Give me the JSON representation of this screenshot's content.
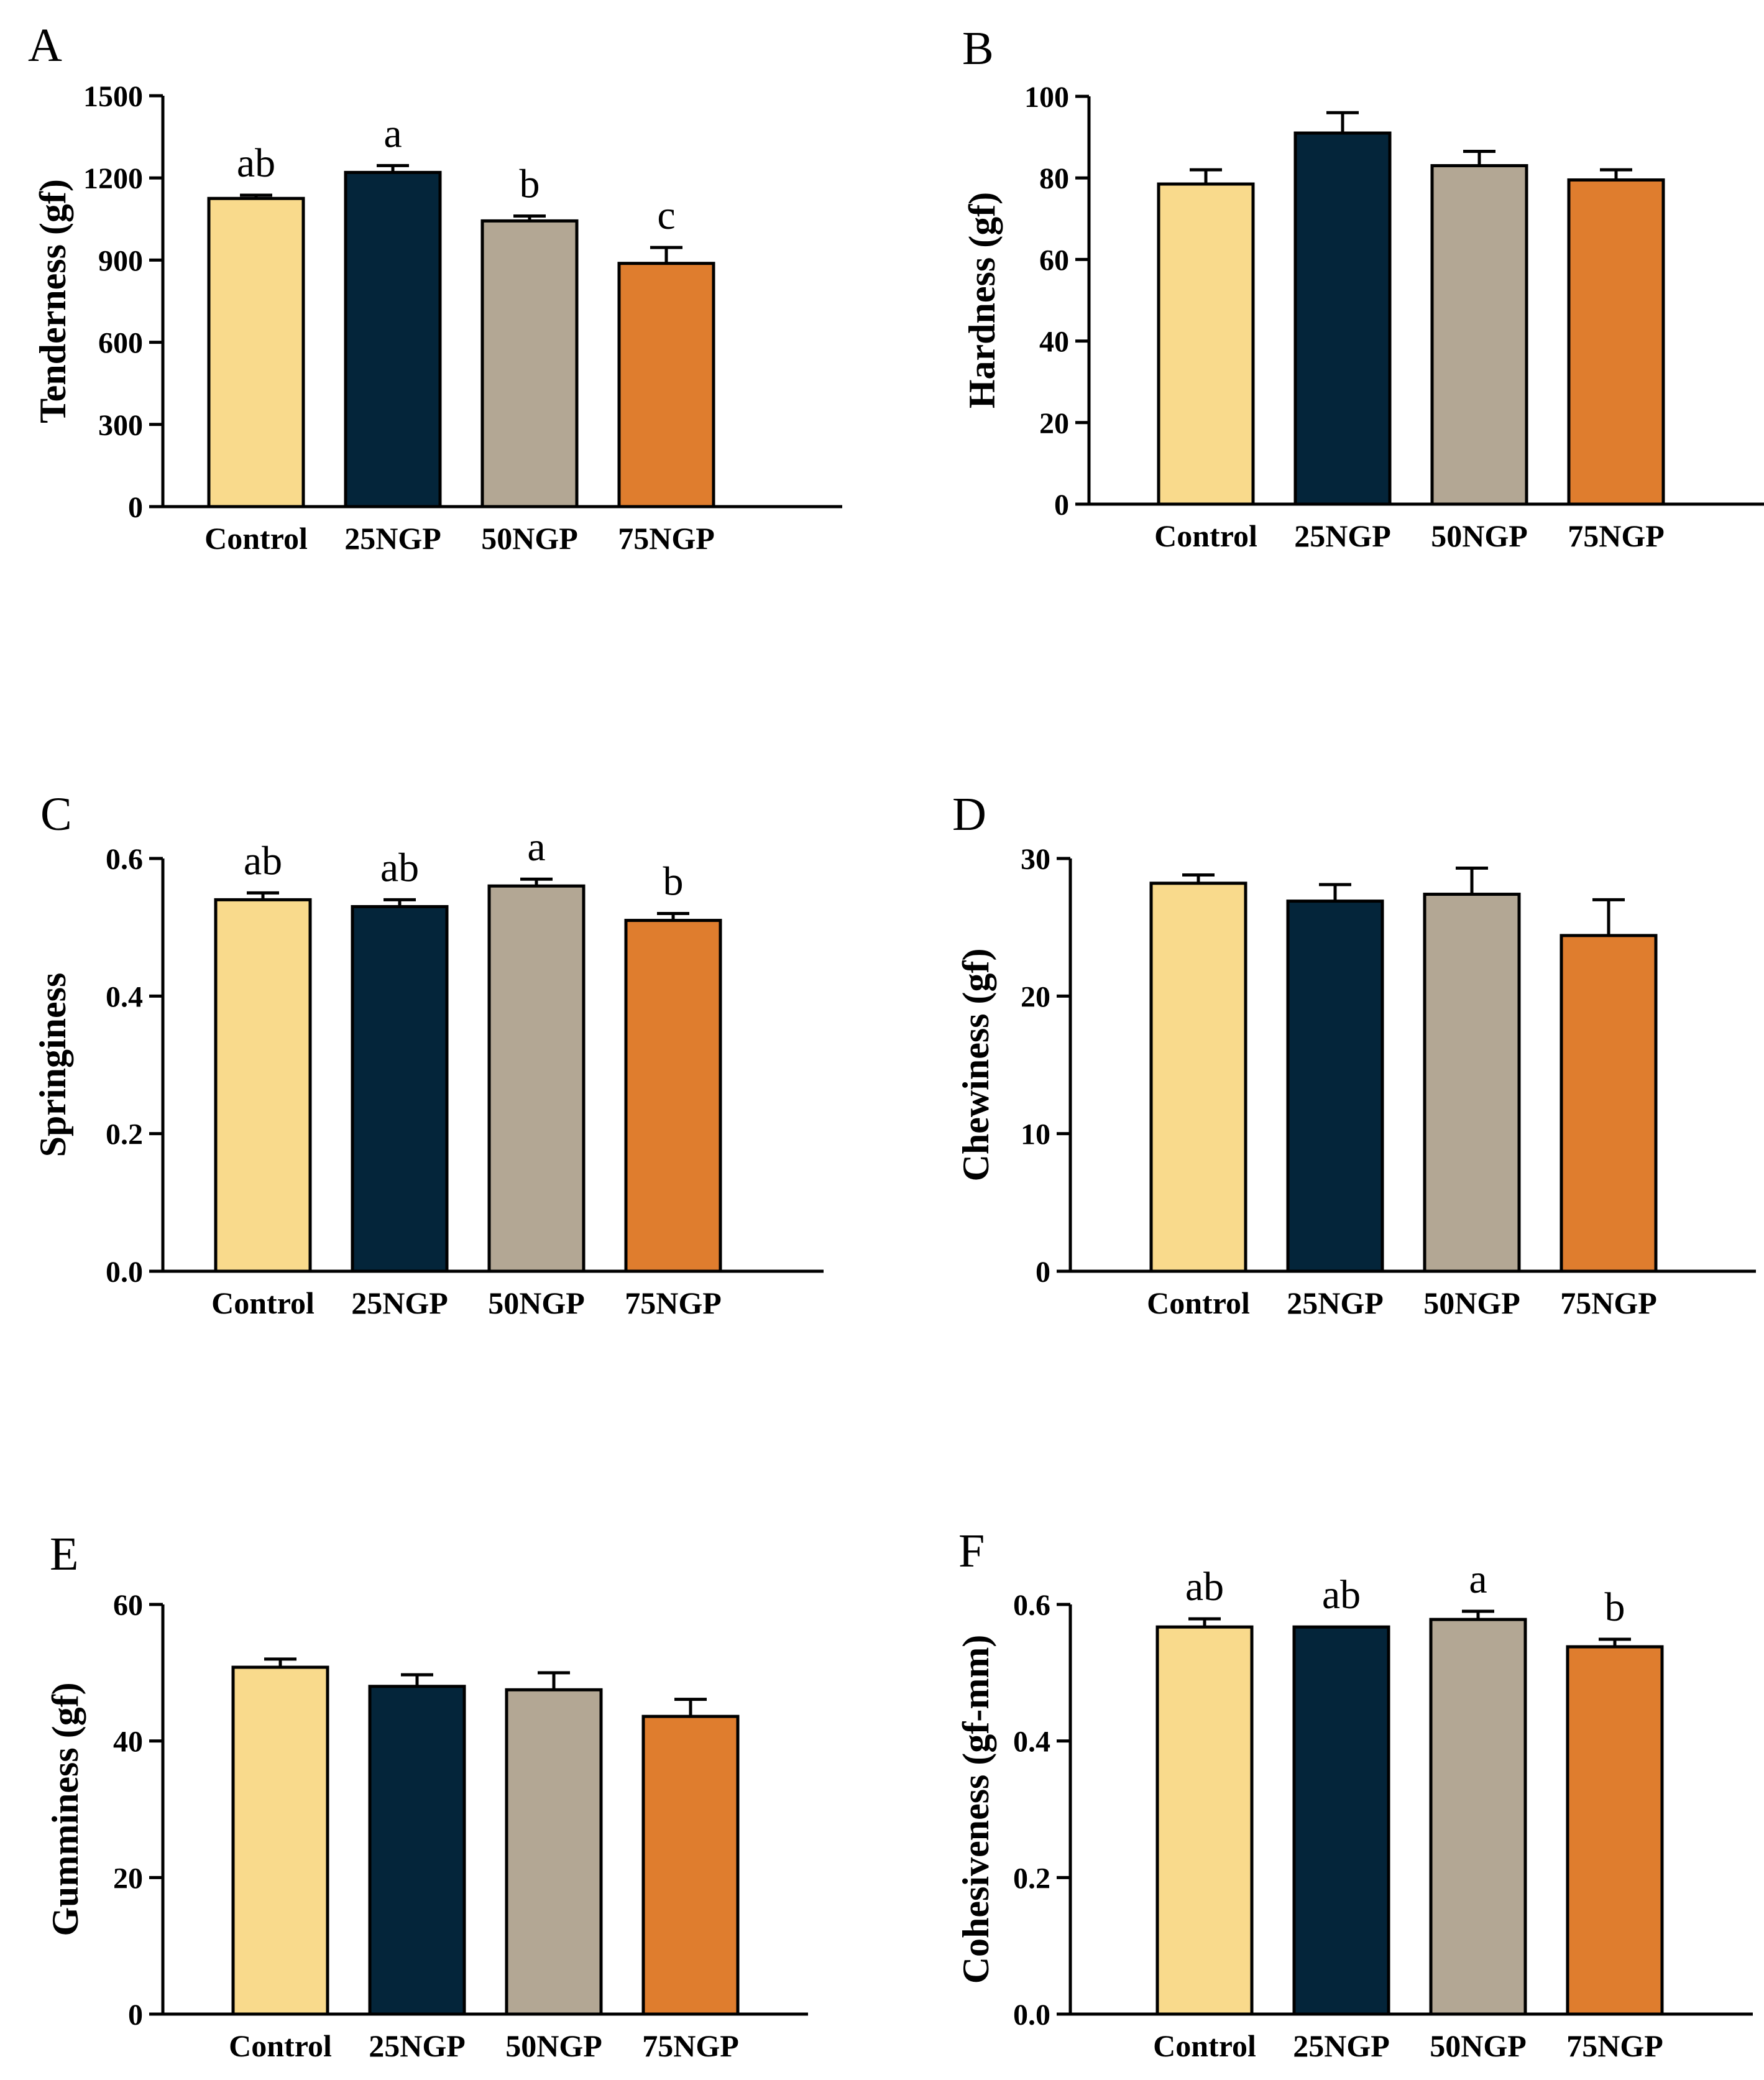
{
  "figure": {
    "categories": [
      "Control",
      "25NGP",
      "50NGP",
      "75NGP"
    ],
    "colors": {
      "bars": [
        "#f9da8c",
        "#04253a",
        "#b3a794",
        "#df7d2e"
      ],
      "axis": "#000000"
    }
  },
  "chart_data": [
    {
      "panel": "A",
      "type": "bar",
      "title": "",
      "xlabel": "",
      "ylabel": "Tenderness (gf)",
      "categories": [
        "Control",
        "25NGP",
        "50NGP",
        "75NGP"
      ],
      "values": [
        1125,
        1220,
        1043,
        888
      ],
      "errors": [
        12,
        25,
        18,
        58
      ],
      "significance": [
        "ab",
        "a",
        "b",
        "c"
      ],
      "ylim": [
        0,
        1500
      ],
      "yticks": [
        0,
        300,
        600,
        900,
        1200,
        1500
      ],
      "ytick_labels": [
        "0",
        "300",
        "600",
        "900",
        "1200",
        "1500"
      ],
      "grid": false
    },
    {
      "panel": "B",
      "type": "bar",
      "title": "",
      "xlabel": "",
      "ylabel": "Hardness (gf)",
      "categories": [
        "Control",
        "25NGP",
        "50NGP",
        "75NGP"
      ],
      "values": [
        78.5,
        91,
        83,
        79.5
      ],
      "errors": [
        3.5,
        5,
        3.5,
        2.5
      ],
      "significance": [],
      "ylim": [
        0,
        100
      ],
      "yticks": [
        0,
        20,
        40,
        60,
        80,
        100
      ],
      "ytick_labels": [
        "0",
        "20",
        "40",
        "60",
        "80",
        "100"
      ],
      "grid": false
    },
    {
      "panel": "C",
      "type": "bar",
      "title": "",
      "xlabel": "",
      "ylabel": "Springiness",
      "categories": [
        "Control",
        "25NGP",
        "50NGP",
        "75NGP"
      ],
      "values": [
        0.54,
        0.53,
        0.56,
        0.51
      ],
      "errors": [
        0.01,
        0.01,
        0.01,
        0.01
      ],
      "significance": [
        "ab",
        "ab",
        "a",
        "b"
      ],
      "ylim": [
        0,
        0.6
      ],
      "yticks": [
        0,
        0.2,
        0.4,
        0.6
      ],
      "ytick_labels": [
        "0.0",
        "0.2",
        "0.4",
        "0.6"
      ],
      "grid": false
    },
    {
      "panel": "D",
      "type": "bar",
      "title": "",
      "xlabel": "",
      "ylabel": "Chewiness (gf)",
      "categories": [
        "Control",
        "25NGP",
        "50NGP",
        "75NGP"
      ],
      "values": [
        28.2,
        26.9,
        27.4,
        24.4
      ],
      "errors": [
        0.6,
        1.2,
        1.9,
        2.6
      ],
      "significance": [],
      "ylim": [
        0,
        30
      ],
      "yticks": [
        0,
        10,
        20,
        30
      ],
      "ytick_labels": [
        "0",
        "10",
        "20",
        "30"
      ],
      "grid": false
    },
    {
      "panel": "E",
      "type": "bar",
      "title": "",
      "xlabel": "",
      "ylabel": "Gumminess (gf)",
      "categories": [
        "Control",
        "25NGP",
        "50NGP",
        "75NGP"
      ],
      "values": [
        50.8,
        48,
        47.5,
        43.6
      ],
      "errors": [
        1.2,
        1.7,
        2.5,
        2.5
      ],
      "significance": [],
      "ylim": [
        0,
        60
      ],
      "yticks": [
        0,
        20,
        40,
        60
      ],
      "ytick_labels": [
        "0",
        "20",
        "40",
        "60"
      ],
      "grid": false
    },
    {
      "panel": "F",
      "type": "bar",
      "title": "",
      "xlabel": "",
      "ylabel": "Cohesiveness (gf-mm)",
      "categories": [
        "Control",
        "25NGP",
        "50NGP",
        "75NGP"
      ],
      "values": [
        0.567,
        0.567,
        0.578,
        0.538
      ],
      "errors": [
        0.012,
        0.0,
        0.012,
        0.011
      ],
      "significance": [
        "ab",
        "ab",
        "a",
        "b"
      ],
      "ylim": [
        0,
        0.6
      ],
      "yticks": [
        0,
        0.2,
        0.4,
        0.6
      ],
      "ytick_labels": [
        "0.0",
        "0.2",
        "0.4",
        "0.6"
      ],
      "grid": false
    }
  ]
}
